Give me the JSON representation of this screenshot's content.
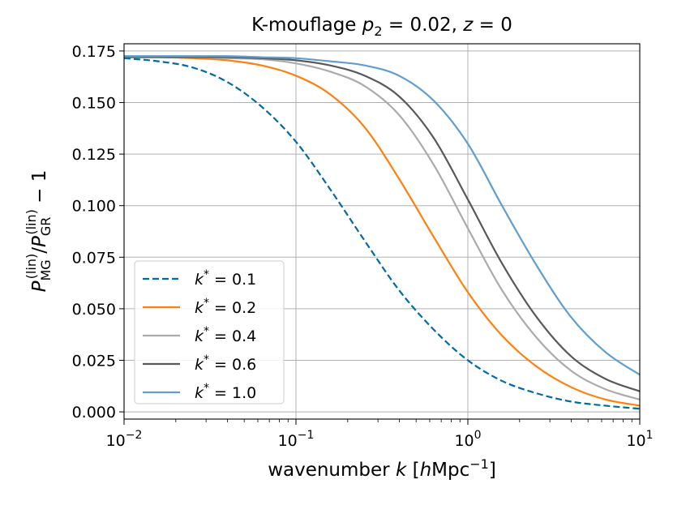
{
  "chart_data": {
    "type": "line",
    "title": "K-mouflage p₂ = 0.02, z = 0",
    "title_parts": {
      "prefix": "K-mouflage ",
      "p": "p",
      "p_sub": "2",
      "p_eq": " = 0.02, ",
      "z": "z",
      "z_eq": " = 0"
    },
    "xlabel": "wavenumber k [hMpc⁻¹]",
    "xlabel_parts": {
      "prefix": "wavenumber ",
      "k": "k",
      "open": " [",
      "h": "h",
      "unit": "Mpc",
      "sup": "−1",
      "close": "]"
    },
    "ylabel": "P_MG^(lin)/P_GR^(lin) − 1",
    "ylabel_parts": {
      "P1": "P",
      "sub1": "MG",
      "sup1": "(lin)",
      "slash": "/",
      "P2": "P",
      "sub2": "GR",
      "sup2": "(lin)",
      "tail": " − 1"
    },
    "x_scale": "log",
    "xlim": [
      0.01,
      10
    ],
    "ylim": [
      -0.0035,
      0.1785
    ],
    "grid": true,
    "legend_position": "lower-left",
    "x_ticks": [
      {
        "value": 0.01,
        "base": "10",
        "exp": "−2"
      },
      {
        "value": 0.1,
        "base": "10",
        "exp": "−1"
      },
      {
        "value": 1,
        "base": "10",
        "exp": "0"
      },
      {
        "value": 10,
        "base": "10",
        "exp": "1"
      }
    ],
    "y_ticks": [
      {
        "value": 0.0,
        "label": "0.000"
      },
      {
        "value": 0.025,
        "label": "0.025"
      },
      {
        "value": 0.05,
        "label": "0.050"
      },
      {
        "value": 0.075,
        "label": "0.075"
      },
      {
        "value": 0.1,
        "label": "0.100"
      },
      {
        "value": 0.125,
        "label": "0.125"
      },
      {
        "value": 0.15,
        "label": "0.150"
      },
      {
        "value": 0.175,
        "label": "0.175"
      }
    ],
    "x": [
      0.01,
      0.0158,
      0.0251,
      0.0398,
      0.0631,
      0.1,
      0.158,
      0.251,
      0.398,
      0.631,
      1.0,
      1.58,
      2.51,
      3.98,
      6.31,
      10.0
    ],
    "series": [
      {
        "name": "k* = 0.1",
        "label_value": "0.1",
        "color": "#006ba4",
        "style": "dashed",
        "values": [
          0.1715,
          0.17,
          0.167,
          0.16,
          0.148,
          0.131,
          0.108,
          0.083,
          0.059,
          0.04,
          0.025,
          0.015,
          0.009,
          0.005,
          0.003,
          0.0015
        ]
      },
      {
        "name": "k* = 0.2",
        "label_value": "0.2",
        "color": "#ff800e",
        "style": "solid",
        "values": [
          0.172,
          0.172,
          0.1715,
          0.1705,
          0.168,
          0.163,
          0.154,
          0.138,
          0.113,
          0.085,
          0.058,
          0.037,
          0.022,
          0.012,
          0.006,
          0.003
        ]
      },
      {
        "name": "k* = 0.4",
        "label_value": "0.4",
        "color": "#ababab",
        "style": "solid",
        "values": [
          0.172,
          0.172,
          0.172,
          0.1715,
          0.171,
          0.169,
          0.165,
          0.158,
          0.144,
          0.12,
          0.089,
          0.059,
          0.036,
          0.02,
          0.011,
          0.006
        ]
      },
      {
        "name": "k* = 0.6",
        "label_value": "0.6",
        "color": "#595959",
        "style": "solid",
        "values": [
          0.172,
          0.172,
          0.172,
          0.172,
          0.1715,
          0.1705,
          0.168,
          0.163,
          0.153,
          0.133,
          0.103,
          0.072,
          0.046,
          0.027,
          0.016,
          0.01
        ]
      },
      {
        "name": "k* = 1.0",
        "label_value": "1.0",
        "color": "#5f9ed1",
        "style": "solid",
        "values": [
          0.1725,
          0.1725,
          0.1725,
          0.1725,
          0.172,
          0.1715,
          0.17,
          0.168,
          0.163,
          0.151,
          0.13,
          0.1,
          0.071,
          0.046,
          0.029,
          0.018
        ]
      }
    ]
  }
}
